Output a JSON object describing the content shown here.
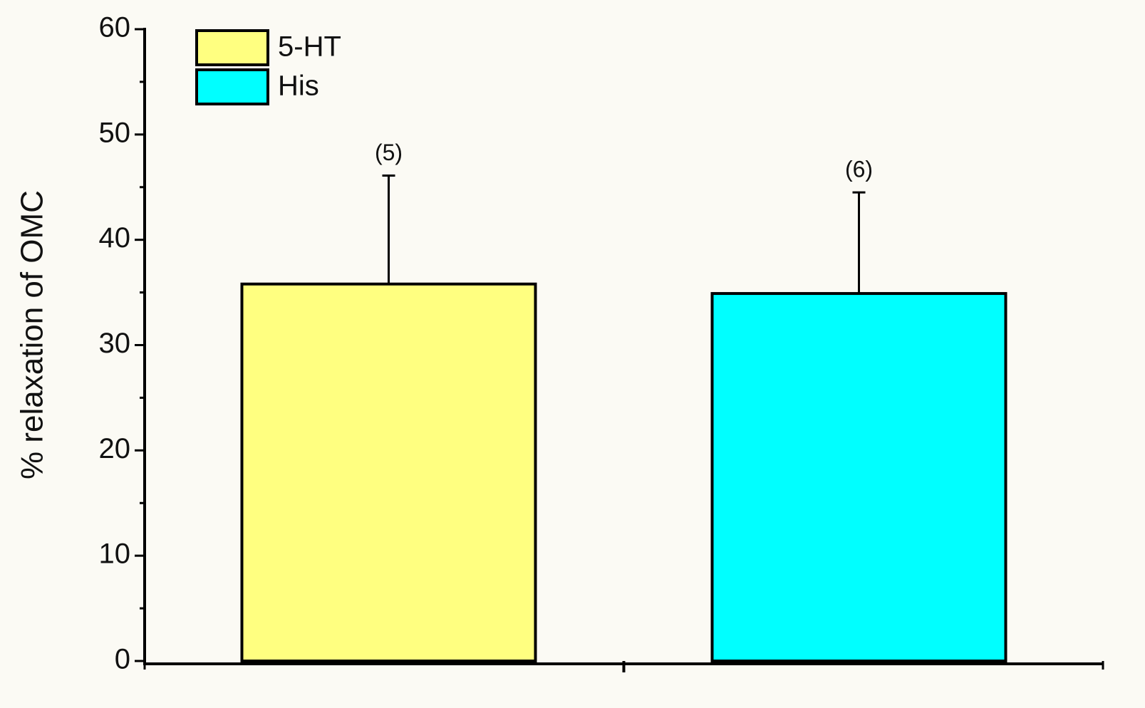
{
  "chart_data": {
    "type": "bar",
    "y_label": "% relaxation of OMC",
    "categories": [
      null
    ],
    "series": [
      {
        "name": "5-HT",
        "color": "#ffff80",
        "values": [
          35.8
        ],
        "errors": [
          10.3
        ],
        "n_labels": [
          "(5)"
        ]
      },
      {
        "name": "His",
        "color": "#00ffff",
        "values": [
          34.9
        ],
        "errors": [
          9.6
        ],
        "n_labels": [
          "(6)"
        ]
      }
    ],
    "ylim": [
      0,
      60
    ],
    "yticks": [
      0,
      10,
      20,
      30,
      40,
      50,
      60
    ],
    "legend": "top-left"
  }
}
